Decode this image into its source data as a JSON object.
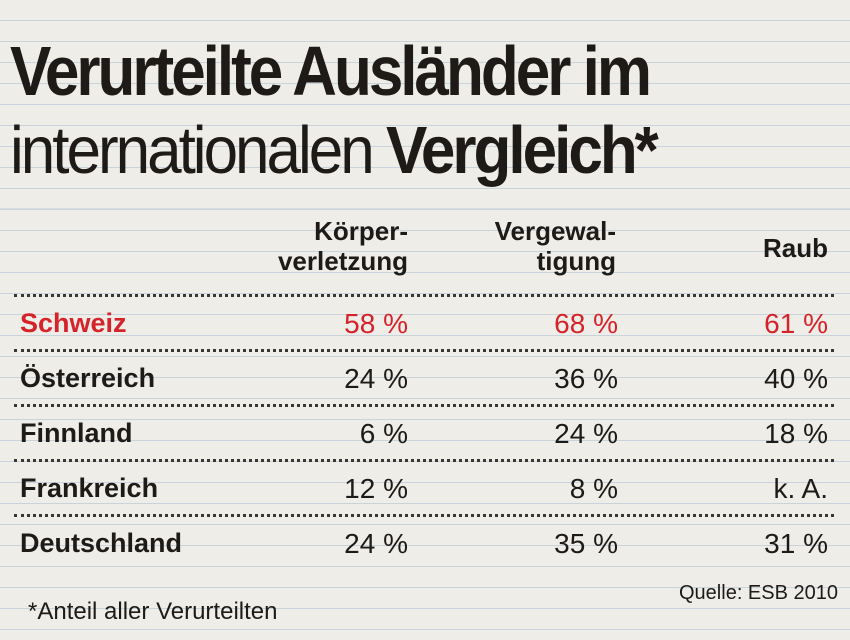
{
  "title": {
    "line1": "Verurteilte Ausländer im",
    "line2_light": "internationalen ",
    "line2_bold": "Vergleich*"
  },
  "columns": [
    {
      "line1": "Körper-",
      "line2": "verletzung"
    },
    {
      "line1": "Vergewal-",
      "line2": "tigung"
    },
    {
      "line1": "Raub",
      "line2": ""
    }
  ],
  "rows": [
    {
      "country": "Schweiz",
      "values": [
        "58 %",
        "68 %",
        "61 %"
      ],
      "highlight": true
    },
    {
      "country": "Österreich",
      "values": [
        "24 %",
        "36 %",
        "40 %"
      ],
      "highlight": false
    },
    {
      "country": "Finnland",
      "values": [
        "6 %",
        "24 %",
        "18 %"
      ],
      "highlight": false
    },
    {
      "country": "Frankreich",
      "values": [
        "12 %",
        "8 %",
        "k. A."
      ],
      "highlight": false
    },
    {
      "country": "Deutschland",
      "values": [
        "24 %",
        "35 %",
        "31 %"
      ],
      "highlight": false
    }
  ],
  "source": "Quelle: ESB 2010",
  "footnote": "*Anteil aller Verurteilten",
  "colors": {
    "highlight": "#d4232a",
    "text": "#1d1a17",
    "paper": "#eeede8"
  }
}
